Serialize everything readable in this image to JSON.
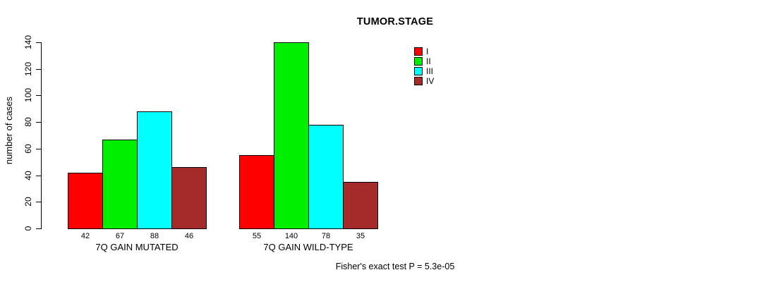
{
  "chart_data": {
    "type": "bar",
    "title": "TUMOR.STAGE",
    "ylabel": "number of cases",
    "xlabel": "",
    "ylim": [
      0,
      140
    ],
    "yticks": [
      0,
      20,
      40,
      60,
      80,
      100,
      120,
      140
    ],
    "grid": false,
    "show_bar_values": true,
    "legend_position": "top-right",
    "categories": [
      "7Q GAIN MUTATED",
      "7Q GAIN WILD-TYPE"
    ],
    "series": [
      {
        "name": "I",
        "color": "#FF0000",
        "values": [
          42,
          55
        ]
      },
      {
        "name": "II",
        "color": "#00EE00",
        "values": [
          67,
          140
        ]
      },
      {
        "name": "III",
        "color": "#00FFFF",
        "values": [
          88,
          78
        ]
      },
      {
        "name": "IV",
        "color": "#A52A2A",
        "values": [
          46,
          35
        ]
      }
    ],
    "annotation": "Fisher's exact test P = 5.3e-05",
    "axis_color": "#000000",
    "bar_border_color": "#000000",
    "background_color": "#FFFFFF",
    "text_color": "#000000"
  }
}
